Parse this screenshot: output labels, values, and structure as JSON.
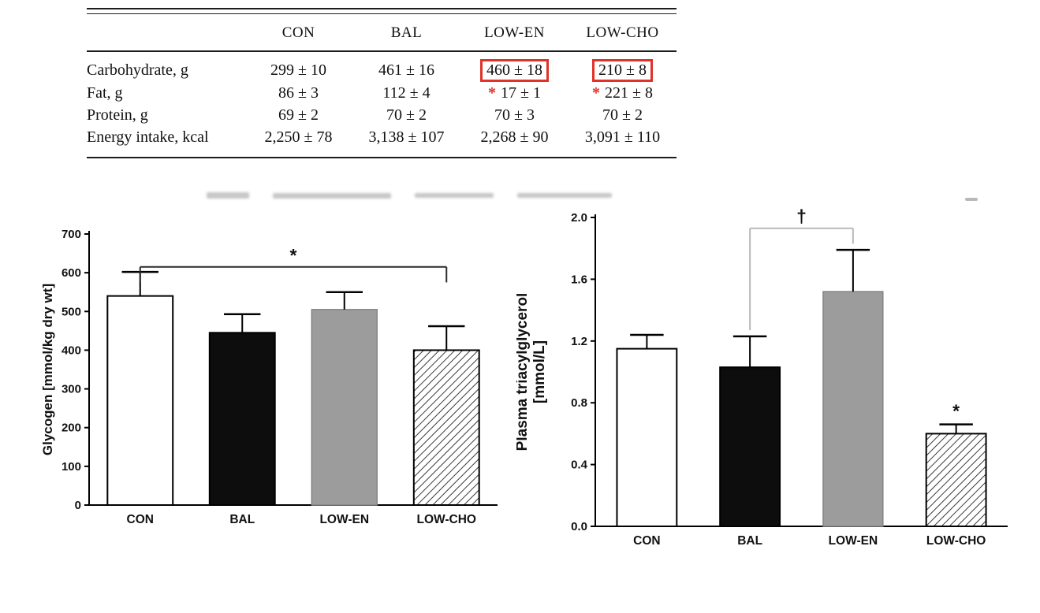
{
  "table": {
    "columns": [
      "CON",
      "BAL",
      "LOW-EN",
      "LOW-CHO"
    ],
    "rows": [
      {
        "label": "Carbohydrate, g",
        "values": [
          "299 ± 10",
          "461 ± 16",
          "460 ± 18",
          "210 ± 8"
        ]
      },
      {
        "label": "Fat, g",
        "values": [
          "86 ± 3",
          "112 ± 4",
          "17 ± 1",
          "221 ± 8"
        ]
      },
      {
        "label": "Protein, g",
        "values": [
          "69 ± 2",
          "70 ± 2",
          "70 ± 3",
          "70 ± 2"
        ]
      },
      {
        "label": "Energy intake, kcal",
        "values": [
          "2,250 ± 78",
          "3,138 ± 107",
          "2,268 ± 90",
          "3,091 ± 110"
        ]
      }
    ],
    "star_symbol": "*",
    "highlight_color": "#e03228"
  },
  "palette": {
    "white_bar": "#ffffff",
    "black_bar": "#0d0d0d",
    "gray_bar": "#9c9c9c",
    "hatch_line": "#3a3a3a",
    "axis": "#000000"
  },
  "chart_data": [
    {
      "type": "bar",
      "ylabel_lines": [
        "Glycogen [mmol/kg dry wt]"
      ],
      "categories": [
        "CON",
        "BAL",
        "LOW-EN",
        "LOW-CHO"
      ],
      "values": [
        540,
        445,
        505,
        400
      ],
      "errors": [
        62,
        48,
        45,
        62
      ],
      "ylim": [
        0,
        700
      ],
      "yticks": [
        0,
        100,
        200,
        300,
        400,
        500,
        600,
        700
      ],
      "ytick_labels": [
        "0",
        "100",
        "200",
        "300",
        "400",
        "500",
        "600",
        "700"
      ],
      "bar_styles": [
        "white",
        "black",
        "gray",
        "hatch"
      ],
      "significance": [
        {
          "from": 0,
          "to": 3,
          "symbol": "*",
          "y": 615,
          "drop_left": 40,
          "drop_right": 40,
          "color": "#2b2b2b"
        }
      ],
      "bar_annotations": []
    },
    {
      "type": "bar",
      "ylabel_lines": [
        "Plasma triacylglycerol",
        "[mmol/L]"
      ],
      "categories": [
        "CON",
        "BAL",
        "LOW-EN",
        "LOW-CHO"
      ],
      "values": [
        1.15,
        1.03,
        1.52,
        0.6
      ],
      "errors": [
        0.09,
        0.2,
        0.27,
        0.06
      ],
      "ylim": [
        0,
        2.0
      ],
      "yticks": [
        0.0,
        0.4,
        0.8,
        1.2,
        1.6,
        2.0
      ],
      "ytick_labels": [
        "0.0",
        "0.4",
        "0.8",
        "1.2",
        "1.6",
        "2.0"
      ],
      "bar_styles": [
        "white",
        "black",
        "gray",
        "hatch"
      ],
      "significance": [
        {
          "from": 1,
          "to": 2,
          "symbol": "†",
          "y": 1.93,
          "drop_left": 0.66,
          "drop_right": 0.1,
          "color": "#b9b9b9"
        }
      ],
      "bar_annotations": [
        {
          "index": 3,
          "symbol": "*"
        }
      ]
    }
  ]
}
